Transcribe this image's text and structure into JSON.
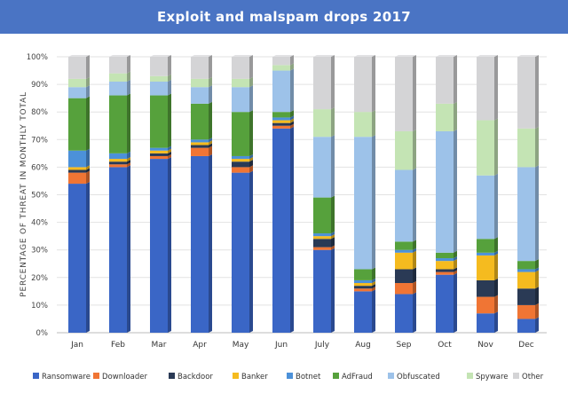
{
  "chart_data": {
    "type": "bar",
    "stacked": true,
    "orientation": "vertical",
    "title": "Exploit and malspam drops 2017",
    "ylabel": "PERCENTAGE OF THREAT IN MONTHLY TOTAL",
    "xlabel": "",
    "ylim": [
      0,
      100
    ],
    "ytick_labels": [
      "0%",
      "10%",
      "20%",
      "30%",
      "40%",
      "50%",
      "60%",
      "70%",
      "80%",
      "90%",
      "100%"
    ],
    "grid": true,
    "legend_position": "bottom",
    "categories": [
      "Jan",
      "Feb",
      "Mar",
      "Apr",
      "May",
      "Jun",
      "July",
      "Aug",
      "Sep",
      "Oct",
      "Nov",
      "Dec"
    ],
    "series": [
      {
        "name": "Ransomware",
        "color": "#3a66c6",
        "values": [
          54,
          60,
          63,
          64,
          58,
          74,
          30,
          15,
          14,
          21,
          7,
          5
        ]
      },
      {
        "name": "Downloader",
        "color": "#f07534",
        "values": [
          4,
          1,
          1,
          3,
          2,
          1,
          1,
          1,
          4,
          1,
          6,
          5
        ]
      },
      {
        "name": "Backdoor",
        "color": "#2a3a55",
        "values": [
          1,
          1,
          1,
          1,
          2,
          1,
          3,
          1,
          5,
          1,
          6,
          6
        ]
      },
      {
        "name": "Banker",
        "color": "#f5bb1f",
        "values": [
          1,
          1,
          1,
          1,
          1,
          1,
          1,
          1,
          6,
          3,
          9,
          6
        ]
      },
      {
        "name": "Botnet",
        "color": "#4c91d9",
        "values": [
          6,
          2,
          1,
          1,
          1,
          1,
          1,
          1,
          1,
          1,
          1,
          1
        ]
      },
      {
        "name": "AdFraud",
        "color": "#56a13c",
        "values": [
          19,
          21,
          19,
          13,
          16,
          2,
          13,
          4,
          3,
          2,
          5,
          3
        ]
      },
      {
        "name": "Obfuscated",
        "color": "#9dc2e9",
        "values": [
          4,
          5,
          5,
          6,
          9,
          15,
          22,
          48,
          26,
          44,
          23,
          34
        ]
      },
      {
        "name": "Spyware",
        "color": "#c4e4b4",
        "values": [
          3,
          3,
          2,
          3,
          3,
          2,
          10,
          9,
          14,
          10,
          20,
          14
        ]
      },
      {
        "name": "Other",
        "color": "#d4d4d6",
        "values": [
          8,
          6,
          7,
          8,
          8,
          3,
          19,
          20,
          27,
          17,
          23,
          26
        ]
      }
    ]
  }
}
